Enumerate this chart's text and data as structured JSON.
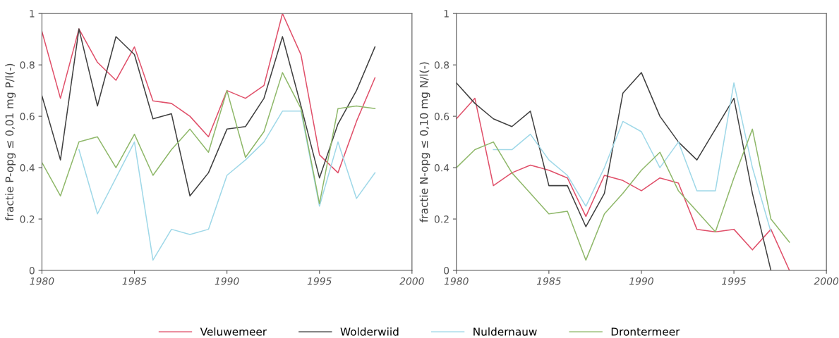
{
  "chart_data": [
    {
      "type": "line",
      "ylabel": "fractie P-opg ≤ 0,01 mg P/l(-)",
      "x": [
        1980,
        1981,
        1982,
        1983,
        1984,
        1985,
        1986,
        1987,
        1988,
        1989,
        1990,
        1991,
        1992,
        1993,
        1994,
        1995,
        1996,
        1997,
        1998
      ],
      "xlim": [
        1980,
        2000
      ],
      "xticks": [
        1980,
        1985,
        1990,
        1995,
        2000
      ],
      "ylim": [
        0,
        1
      ],
      "yticks": [
        0,
        {
          "value": 0.2,
          "label": "0.2"
        },
        {
          "value": 0.4,
          "label": "0.4"
        },
        {
          "value": 0.6,
          "label": "0.6"
        },
        {
          "value": 0.8,
          "label": "0.8"
        },
        1
      ],
      "grid": false,
      "legend": "bottom",
      "series": [
        {
          "name": "Veluwemeer",
          "color": "#e0506a",
          "values": [
            0.93,
            0.67,
            0.94,
            0.81,
            0.74,
            0.87,
            0.66,
            0.65,
            0.6,
            0.52,
            0.7,
            0.67,
            0.72,
            1.0,
            0.84,
            0.45,
            0.38,
            0.58,
            0.75
          ]
        },
        {
          "name": "Wolderwiid",
          "color": "#404040",
          "values": [
            0.68,
            0.43,
            0.94,
            0.64,
            0.91,
            0.84,
            0.59,
            0.61,
            0.29,
            0.38,
            0.55,
            0.56,
            0.67,
            0.91,
            0.64,
            0.36,
            0.57,
            0.7,
            0.87
          ]
        },
        {
          "name": "Nuldernauw",
          "color": "#9fd8e8",
          "values": [
            null,
            null,
            0.47,
            0.22,
            0.36,
            0.5,
            0.04,
            0.16,
            0.14,
            0.16,
            0.37,
            0.43,
            0.5,
            0.62,
            0.62,
            0.25,
            0.5,
            0.28,
            0.38
          ]
        },
        {
          "name": "Drontermeer",
          "color": "#8fb86a",
          "values": [
            0.42,
            0.29,
            0.5,
            0.52,
            0.4,
            0.53,
            0.37,
            0.47,
            0.55,
            0.46,
            0.7,
            0.44,
            0.54,
            0.77,
            0.63,
            0.26,
            0.63,
            0.64,
            0.63
          ]
        }
      ]
    },
    {
      "type": "line",
      "ylabel": "fractie N-opg ≤ 0,10 mg N/l(-)",
      "x": [
        1980,
        1981,
        1982,
        1983,
        1984,
        1985,
        1986,
        1987,
        1988,
        1989,
        1990,
        1991,
        1992,
        1993,
        1994,
        1995,
        1996,
        1997,
        1998
      ],
      "xlim": [
        1980,
        2000
      ],
      "xticks": [
        1980,
        1985,
        1990,
        1995,
        2000
      ],
      "ylim": [
        0,
        1
      ],
      "yticks": [
        0,
        {
          "value": 0.2,
          "label": "0.2"
        },
        {
          "value": 0.4,
          "label": "0.4"
        },
        {
          "value": 0.6,
          "label": "0.6"
        },
        {
          "value": 0.8,
          "label": "0.8"
        },
        1
      ],
      "grid": false,
      "series": [
        {
          "color": "#e0506a",
          "values": [
            0.59,
            0.67,
            0.33,
            0.38,
            0.41,
            0.39,
            0.36,
            0.21,
            0.37,
            0.35,
            0.31,
            0.36,
            0.34,
            0.16,
            0.15,
            0.16,
            0.08,
            0.16,
            0.0
          ]
        },
        {
          "color": "#404040",
          "values": [
            0.73,
            0.65,
            0.59,
            0.56,
            0.62,
            0.33,
            0.33,
            0.17,
            0.3,
            0.69,
            0.77,
            0.6,
            0.5,
            0.43,
            0.55,
            0.67,
            0.3,
            0.0,
            null
          ]
        },
        {
          "color": "#9fd8e8",
          "values": [
            null,
            null,
            0.47,
            0.47,
            0.53,
            0.43,
            0.37,
            0.25,
            0.4,
            0.58,
            0.54,
            0.4,
            0.5,
            0.31,
            0.31,
            0.73,
            0.4,
            0.15,
            null
          ]
        },
        {
          "color": "#8fb86a",
          "values": [
            0.4,
            0.47,
            0.5,
            0.38,
            0.3,
            0.22,
            0.23,
            0.04,
            0.22,
            0.3,
            0.39,
            0.46,
            0.31,
            0.23,
            0.15,
            0.36,
            0.55,
            0.2,
            0.11
          ]
        }
      ]
    }
  ]
}
